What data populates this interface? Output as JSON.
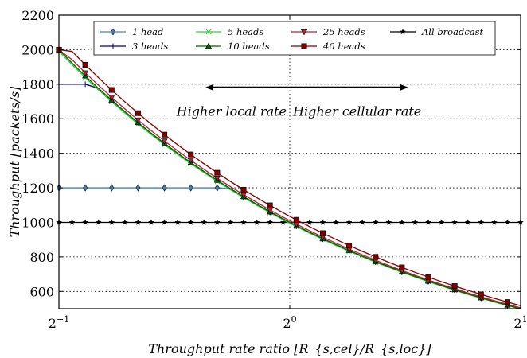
{
  "chart_data": {
    "type": "line",
    "xlabel": "Throughput rate ratio [R_{s,cel}/R_{s,loc}]",
    "ylabel": "Throughput [packets/s]",
    "x_scale": "log2",
    "xlim": [
      0.5,
      2
    ],
    "ylim": [
      500,
      2200
    ],
    "y_ticks": [
      600,
      800,
      1000,
      1200,
      1400,
      1600,
      1800,
      2000,
      2200
    ],
    "x_ticks": [
      {
        "value": 0.5,
        "base": "2",
        "exp": "−1"
      },
      {
        "value": 1,
        "base": "2",
        "exp": "0"
      },
      {
        "value": 2,
        "base": "2",
        "exp": "1"
      }
    ],
    "grid": true,
    "legend_position": "top",
    "annotations": [
      {
        "text": "Higher local rate",
        "arrow": "left"
      },
      {
        "text": "Higher cellular rate",
        "arrow": "right"
      }
    ],
    "series": [
      {
        "name": "1 head",
        "color": "#4682b4",
        "marker": "diamond",
        "cap": 1200
      },
      {
        "name": "3 heads",
        "color": "#000080",
        "marker": "plus",
        "cap": 1800
      },
      {
        "name": "5 heads",
        "color": "#32cd32",
        "marker": "x",
        "cap": 2000,
        "mult": 0.995
      },
      {
        "name": "10 heads",
        "color": "#006400",
        "marker": "triangle-up",
        "cap": 2000,
        "mult": 1.0
      },
      {
        "name": "25 heads",
        "color": "#b22234",
        "marker": "triangle-down",
        "cap": 2000,
        "mult": 1.01
      },
      {
        "name": "40 heads",
        "color": "#800000",
        "marker": "square",
        "cap": 2000,
        "mult": 1.035
      },
      {
        "name": "All broadcast",
        "color": "#000000",
        "marker": "star",
        "constant": 1000
      }
    ]
  }
}
